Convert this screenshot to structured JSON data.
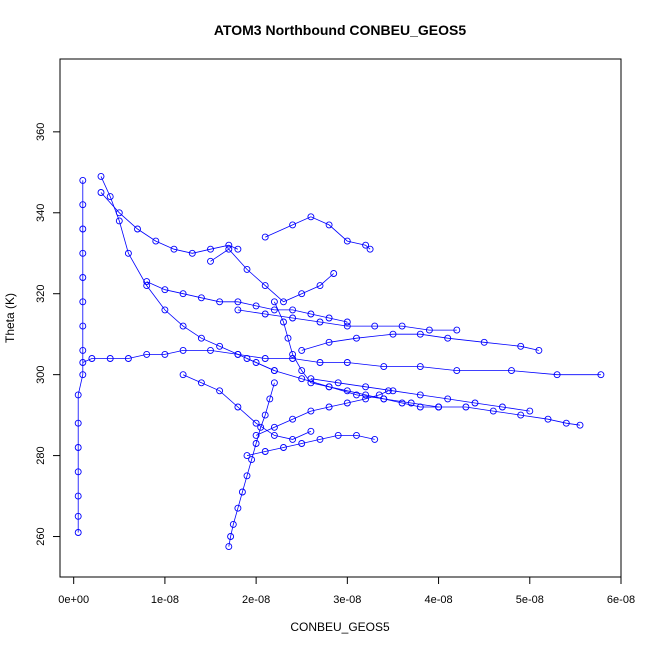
{
  "chart_data": {
    "type": "scatter",
    "title": "ATOM3 Northbound CONBEU_GEOS5",
    "xlabel": "CONBEU_GEOS5",
    "ylabel": "Theta (K)",
    "xlim": [
      -1.5e-09,
      6e-08
    ],
    "ylim": [
      250,
      378
    ],
    "x_ticks": [
      {
        "value": 0,
        "label": "0e+00"
      },
      {
        "value": 1e-08,
        "label": "1e-08"
      },
      {
        "value": 2e-08,
        "label": "2e-08"
      },
      {
        "value": 3e-08,
        "label": "3e-08"
      },
      {
        "value": 4e-08,
        "label": "4e-08"
      },
      {
        "value": 5e-08,
        "label": "5e-08"
      },
      {
        "value": 6e-08,
        "label": "6e-08"
      }
    ],
    "y_ticks": [
      {
        "value": 260,
        "label": "260"
      },
      {
        "value": 280,
        "label": "280"
      },
      {
        "value": 300,
        "label": "300"
      },
      {
        "value": 320,
        "label": "320"
      },
      {
        "value": 340,
        "label": "340"
      },
      {
        "value": 360,
        "label": "360"
      }
    ],
    "grid": false,
    "marker": "open-circle",
    "colors": {
      "series": "#0000ff"
    },
    "series": [
      {
        "x": [
          5e-10,
          5e-10,
          5e-10,
          5e-10,
          5e-10,
          5e-10,
          5e-10,
          1e-09,
          1e-09,
          1e-09,
          1e-09,
          1e-09,
          1e-09,
          1e-09,
          1e-09,
          1e-09
        ],
        "y": [
          261,
          265,
          270,
          276,
          282,
          288,
          295,
          300,
          306,
          312,
          318,
          324,
          330,
          336,
          342,
          348
        ]
      },
      {
        "x": [
          1e-09,
          2e-09,
          4e-09,
          6e-09,
          8e-09,
          1e-08,
          1.2e-08,
          1.5e-08,
          1.8e-08,
          2.1e-08,
          2.4e-08,
          2.7e-08,
          3e-08,
          3.4e-08,
          3.8e-08,
          4.2e-08,
          4.8e-08,
          5.3e-08,
          5.78e-08
        ],
        "y": [
          303,
          304,
          304,
          304,
          305,
          305,
          306,
          306,
          305,
          304,
          304,
          303,
          303,
          302,
          302,
          301,
          301,
          300,
          300
        ]
      },
      {
        "x": [
          1.9e-08,
          2.2e-08,
          2.5e-08,
          2.8e-08,
          3.1e-08,
          3.4e-08,
          3.7e-08,
          4e-08,
          4.3e-08,
          4.6e-08,
          4.9e-08,
          5.2e-08,
          5.4e-08,
          5.55e-08
        ],
        "y": [
          304,
          301,
          299,
          297,
          295,
          294,
          293,
          292,
          292,
          291,
          290,
          289,
          288,
          287.5
        ]
      },
      {
        "x": [
          2.5e-08,
          2.8e-08,
          3.1e-08,
          3.5e-08,
          3.8e-08,
          4.1e-08,
          4.5e-08,
          4.9e-08,
          5.1e-08
        ],
        "y": [
          306,
          308,
          309,
          310,
          310,
          309,
          308,
          307,
          306
        ]
      },
      {
        "x": [
          1.8e-08,
          2.1e-08,
          2.4e-08,
          2.7e-08,
          3e-08,
          3.3e-08,
          3.6e-08,
          3.9e-08,
          4.2e-08
        ],
        "y": [
          316,
          315,
          314,
          313,
          312,
          312,
          312,
          311,
          311
        ]
      },
      {
        "x": [
          1.7e-08,
          1.72e-08,
          1.75e-08,
          1.8e-08,
          1.85e-08,
          1.9e-08,
          1.95e-08,
          2e-08,
          2.05e-08,
          2.1e-08,
          2.15e-08,
          2.2e-08
        ],
        "y": [
          257.5,
          260,
          263,
          267,
          271,
          275,
          279,
          283,
          287,
          290,
          294,
          298
        ]
      },
      {
        "x": [
          2e-08,
          2.2e-08,
          2.4e-08,
          2.6e-08,
          2.8e-08,
          3e-08,
          3.2e-08,
          3.35e-08,
          3.45e-08
        ],
        "y": [
          285,
          287,
          289,
          291,
          292,
          293,
          294,
          295,
          296
        ]
      },
      {
        "x": [
          2.1e-08,
          2.4e-08,
          2.6e-08,
          2.8e-08,
          3e-08,
          3.2e-08,
          3.25e-08
        ],
        "y": [
          334,
          337,
          339,
          337,
          333,
          332,
          331
        ]
      },
      {
        "x": [
          1.5e-08,
          1.7e-08,
          1.9e-08,
          2.1e-08,
          2.3e-08,
          2.5e-08,
          2.7e-08,
          2.85e-08
        ],
        "y": [
          328,
          331,
          326,
          322,
          318,
          320,
          322,
          325
        ]
      },
      {
        "x": [
          3e-09,
          5e-09,
          7e-09,
          9e-09,
          1.1e-08,
          1.3e-08,
          1.5e-08,
          1.7e-08,
          1.8e-08
        ],
        "y": [
          345,
          340,
          336,
          333,
          331,
          330,
          331,
          332,
          331
        ]
      },
      {
        "x": [
          3e-09,
          4e-09,
          5e-09,
          6e-09,
          8e-09,
          1e-08,
          1.2e-08,
          1.4e-08,
          1.6e-08,
          1.8e-08,
          2e-08,
          2.2e-08
        ],
        "y": [
          349,
          344,
          338,
          330,
          322,
          316,
          312,
          309,
          307,
          305,
          303,
          301
        ]
      },
      {
        "x": [
          2.2e-08,
          2.3e-08,
          2.35e-08,
          2.4e-08,
          2.5e-08,
          2.6e-08,
          2.8e-08,
          3e-08,
          3.2e-08,
          3.4e-08,
          3.6e-08,
          3.8e-08,
          4e-08
        ],
        "y": [
          318,
          313,
          309,
          305,
          301,
          298,
          297,
          296,
          295,
          294,
          293,
          292,
          292
        ]
      },
      {
        "x": [
          1.2e-08,
          1.4e-08,
          1.6e-08,
          1.8e-08,
          2e-08,
          2.2e-08,
          2.4e-08,
          2.6e-08
        ],
        "y": [
          300,
          298,
          296,
          292,
          288,
          285,
          284,
          286
        ]
      },
      {
        "x": [
          8e-09,
          1e-08,
          1.2e-08,
          1.4e-08,
          1.6e-08,
          1.8e-08,
          2e-08,
          2.2e-08,
          2.4e-08,
          2.6e-08,
          2.8e-08,
          3e-08
        ],
        "y": [
          323,
          321,
          320,
          319,
          318,
          318,
          317,
          316,
          316,
          315,
          314,
          313
        ]
      },
      {
        "x": [
          2.6e-08,
          2.9e-08,
          3.2e-08,
          3.5e-08,
          3.8e-08,
          4.1e-08,
          4.4e-08,
          4.7e-08,
          5e-08
        ],
        "y": [
          299,
          298,
          297,
          296,
          295,
          294,
          293,
          292,
          291
        ]
      },
      {
        "x": [
          1.9e-08,
          2.1e-08,
          2.3e-08,
          2.5e-08,
          2.7e-08,
          2.9e-08,
          3.1e-08,
          3.3e-08
        ],
        "y": [
          280,
          281,
          282,
          283,
          284,
          285,
          285,
          284
        ]
      }
    ]
  }
}
